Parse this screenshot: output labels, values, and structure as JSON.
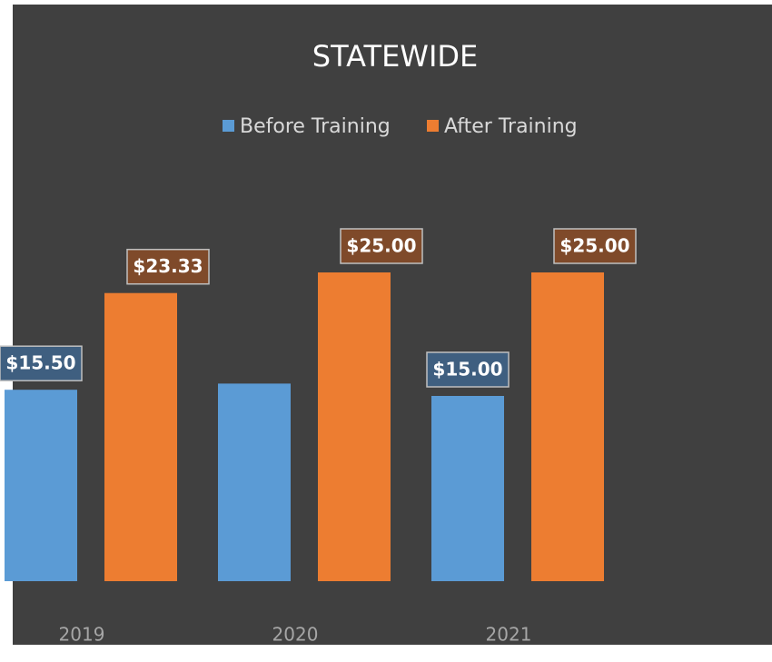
{
  "chart_data": {
    "type": "bar",
    "title": "STATEWIDE",
    "categories": [
      "2019",
      "2020",
      "2021"
    ],
    "series": [
      {
        "name": "Before Training",
        "color": "#5b9bd5",
        "values": [
          15.5,
          16,
          15
        ],
        "value_labels": [
          "$15.50",
          null,
          "$15.00"
        ]
      },
      {
        "name": "After Training",
        "color": "#ed7d31",
        "values": [
          23.33,
          25,
          25
        ],
        "value_labels": [
          "$23.33",
          "$25.00",
          "$25.00"
        ]
      }
    ],
    "ylim": [
      0,
      25
    ]
  }
}
